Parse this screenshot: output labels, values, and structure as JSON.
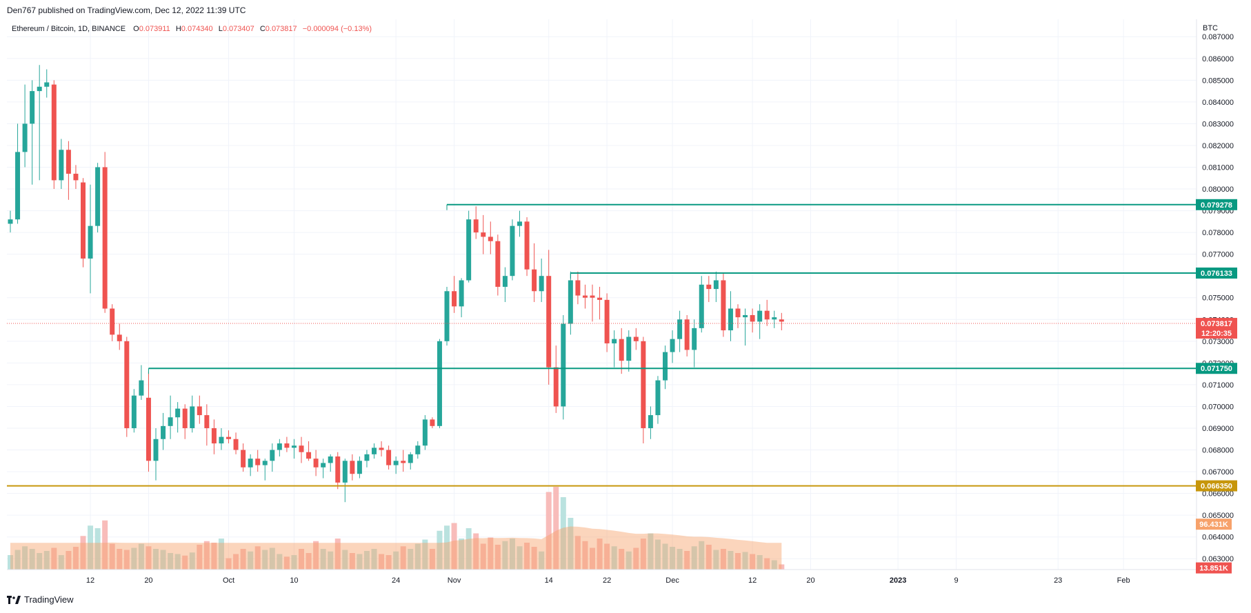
{
  "header": {
    "published": "Den767 published on TradingView.com, Dec 12, 2022 11:39 UTC"
  },
  "legend": {
    "symbol": "Ethereum / Bitcoin, 1D, BINANCE",
    "o_label": "O",
    "o_value": "0.073911",
    "h_label": "H",
    "h_value": "0.074340",
    "l_label": "L",
    "l_value": "0.073407",
    "c_label": "C",
    "c_value": "0.073817",
    "change": "−0.000094 (−0.13%)"
  },
  "footer": {
    "brand": "TradingView",
    "logo_icon": "tradingview-logo-icon"
  },
  "colors": {
    "up": "#26a69a",
    "down": "#ef5350",
    "level": "#089981",
    "support": "#c7960b",
    "vol_up": "#b2dfdb",
    "vol_down": "#f7b5b3",
    "vol_ma": "#f7a26b",
    "grid": "#f0f3fa"
  },
  "chart_data": {
    "type": "candlestick",
    "currency_label": "BTC",
    "price_axis_ticks": [
      "0.087000",
      "0.086000",
      "0.085000",
      "0.084000",
      "0.083000",
      "0.082000",
      "0.081000",
      "0.080000",
      "0.079000",
      "0.078000",
      "0.077000",
      "0.075000",
      "0.074000",
      "0.073000",
      "0.072000",
      "0.071000",
      "0.070000",
      "0.069000",
      "0.068000",
      "0.067000",
      "0.066000",
      "0.065000",
      "0.064000",
      "0.063000"
    ],
    "time_axis_ticks": [
      {
        "label": "12",
        "date": "2022-09-12"
      },
      {
        "label": "20",
        "date": "2022-09-20"
      },
      {
        "label": "Oct",
        "date": "2022-10-01"
      },
      {
        "label": "10",
        "date": "2022-10-10"
      },
      {
        "label": "24",
        "date": "2022-10-24"
      },
      {
        "label": "Nov",
        "date": "2022-11-01"
      },
      {
        "label": "14",
        "date": "2022-11-14"
      },
      {
        "label": "22",
        "date": "2022-11-22"
      },
      {
        "label": "Dec",
        "date": "2022-12-01"
      },
      {
        "label": "12",
        "date": "2022-12-12"
      },
      {
        "label": "20",
        "date": "2022-12-20"
      },
      {
        "label": "2023",
        "date": "2023-01-01"
      },
      {
        "label": "9",
        "date": "2023-01-09"
      },
      {
        "label": "23",
        "date": "2023-01-23"
      },
      {
        "label": "Feb",
        "date": "2023-02-01"
      }
    ],
    "price_range": [
      0.0625,
      0.0878
    ],
    "date_range": [
      "2022-09-01",
      "2023-02-11"
    ],
    "candles": [
      {
        "d": "2022-09-01",
        "o": 0.0784,
        "h": 0.079,
        "l": 0.078,
        "c": 0.0786,
        "v": 28
      },
      {
        "d": "2022-09-02",
        "o": 0.0786,
        "h": 0.083,
        "l": 0.0784,
        "c": 0.0817,
        "v": 38
      },
      {
        "d": "2022-09-03",
        "o": 0.0817,
        "h": 0.0848,
        "l": 0.081,
        "c": 0.083,
        "v": 45
      },
      {
        "d": "2022-09-04",
        "o": 0.083,
        "h": 0.085,
        "l": 0.0802,
        "c": 0.0845,
        "v": 40
      },
      {
        "d": "2022-09-05",
        "o": 0.0845,
        "h": 0.0857,
        "l": 0.0804,
        "c": 0.0847,
        "v": 32
      },
      {
        "d": "2022-09-06",
        "o": 0.0847,
        "h": 0.0855,
        "l": 0.0842,
        "c": 0.0849,
        "v": 36
      },
      {
        "d": "2022-09-07",
        "o": 0.0848,
        "h": 0.085,
        "l": 0.08,
        "c": 0.0804,
        "v": 42
      },
      {
        "d": "2022-09-08",
        "o": 0.0804,
        "h": 0.0823,
        "l": 0.08,
        "c": 0.0818,
        "v": 28
      },
      {
        "d": "2022-09-09",
        "o": 0.0818,
        "h": 0.0822,
        "l": 0.0795,
        "c": 0.0807,
        "v": 36
      },
      {
        "d": "2022-09-10",
        "o": 0.0807,
        "h": 0.0811,
        "l": 0.08,
        "c": 0.0804,
        "v": 44
      },
      {
        "d": "2022-09-11",
        "o": 0.0803,
        "h": 0.0805,
        "l": 0.0764,
        "c": 0.0768,
        "v": 65
      },
      {
        "d": "2022-09-12",
        "o": 0.0768,
        "h": 0.0802,
        "l": 0.0752,
        "c": 0.0783,
        "v": 85
      },
      {
        "d": "2022-09-13",
        "o": 0.0783,
        "h": 0.0812,
        "l": 0.078,
        "c": 0.081,
        "v": 80
      },
      {
        "d": "2022-09-14",
        "o": 0.081,
        "h": 0.0817,
        "l": 0.0743,
        "c": 0.0745,
        "v": 95
      },
      {
        "d": "2022-09-15",
        "o": 0.0745,
        "h": 0.0747,
        "l": 0.073,
        "c": 0.0733,
        "v": 50
      },
      {
        "d": "2022-09-16",
        "o": 0.0733,
        "h": 0.0738,
        "l": 0.0726,
        "c": 0.073,
        "v": 40
      },
      {
        "d": "2022-09-17",
        "o": 0.073,
        "h": 0.0732,
        "l": 0.0686,
        "c": 0.069,
        "v": 38
      },
      {
        "d": "2022-09-18",
        "o": 0.069,
        "h": 0.0708,
        "l": 0.0688,
        "c": 0.0705,
        "v": 42
      },
      {
        "d": "2022-09-19",
        "o": 0.0705,
        "h": 0.0719,
        "l": 0.0703,
        "c": 0.0712,
        "v": 50
      },
      {
        "d": "2022-09-20",
        "o": 0.0704,
        "h": 0.0716,
        "l": 0.067,
        "c": 0.0675,
        "v": 45
      },
      {
        "d": "2022-09-21",
        "o": 0.0675,
        "h": 0.069,
        "l": 0.0666,
        "c": 0.0685,
        "v": 40
      },
      {
        "d": "2022-09-22",
        "o": 0.0685,
        "h": 0.0697,
        "l": 0.068,
        "c": 0.0691,
        "v": 38
      },
      {
        "d": "2022-09-23",
        "o": 0.0691,
        "h": 0.0705,
        "l": 0.0685,
        "c": 0.0695,
        "v": 32
      },
      {
        "d": "2022-09-24",
        "o": 0.0695,
        "h": 0.0702,
        "l": 0.0688,
        "c": 0.0699,
        "v": 30
      },
      {
        "d": "2022-09-25",
        "o": 0.0699,
        "h": 0.0701,
        "l": 0.0685,
        "c": 0.069,
        "v": 27
      },
      {
        "d": "2022-09-26",
        "o": 0.069,
        "h": 0.0705,
        "l": 0.0688,
        "c": 0.07,
        "v": 33
      },
      {
        "d": "2022-09-27",
        "o": 0.07,
        "h": 0.0705,
        "l": 0.0692,
        "c": 0.0696,
        "v": 48
      },
      {
        "d": "2022-09-28",
        "o": 0.0696,
        "h": 0.0701,
        "l": 0.0682,
        "c": 0.069,
        "v": 55
      },
      {
        "d": "2022-09-29",
        "o": 0.069,
        "h": 0.0694,
        "l": 0.0678,
        "c": 0.0683,
        "v": 52
      },
      {
        "d": "2022-09-30",
        "o": 0.0683,
        "h": 0.069,
        "l": 0.068,
        "c": 0.0686,
        "v": 60
      },
      {
        "d": "2022-10-01",
        "o": 0.0686,
        "h": 0.0689,
        "l": 0.0683,
        "c": 0.0685,
        "v": 22
      },
      {
        "d": "2022-10-02",
        "o": 0.0685,
        "h": 0.0688,
        "l": 0.0678,
        "c": 0.068,
        "v": 30
      },
      {
        "d": "2022-10-03",
        "o": 0.068,
        "h": 0.0683,
        "l": 0.067,
        "c": 0.0672,
        "v": 40
      },
      {
        "d": "2022-10-04",
        "o": 0.0672,
        "h": 0.0678,
        "l": 0.0668,
        "c": 0.0676,
        "v": 35
      },
      {
        "d": "2022-10-05",
        "o": 0.0676,
        "h": 0.068,
        "l": 0.067,
        "c": 0.0673,
        "v": 45
      },
      {
        "d": "2022-10-06",
        "o": 0.0673,
        "h": 0.0676,
        "l": 0.0666,
        "c": 0.0675,
        "v": 38
      },
      {
        "d": "2022-10-07",
        "o": 0.0675,
        "h": 0.0683,
        "l": 0.067,
        "c": 0.068,
        "v": 42
      },
      {
        "d": "2022-10-08",
        "o": 0.068,
        "h": 0.0685,
        "l": 0.0677,
        "c": 0.0683,
        "v": 30
      },
      {
        "d": "2022-10-09",
        "o": 0.0683,
        "h": 0.0686,
        "l": 0.0679,
        "c": 0.0681,
        "v": 25
      },
      {
        "d": "2022-10-10",
        "o": 0.0681,
        "h": 0.0685,
        "l": 0.0676,
        "c": 0.0682,
        "v": 28
      },
      {
        "d": "2022-10-11",
        "o": 0.0682,
        "h": 0.0686,
        "l": 0.0674,
        "c": 0.0679,
        "v": 40
      },
      {
        "d": "2022-10-12",
        "o": 0.0679,
        "h": 0.0684,
        "l": 0.0675,
        "c": 0.0676,
        "v": 32
      },
      {
        "d": "2022-10-13",
        "o": 0.0676,
        "h": 0.068,
        "l": 0.0668,
        "c": 0.0672,
        "v": 55
      },
      {
        "d": "2022-10-14",
        "o": 0.0672,
        "h": 0.0676,
        "l": 0.0667,
        "c": 0.0674,
        "v": 40
      },
      {
        "d": "2022-10-15",
        "o": 0.0674,
        "h": 0.0678,
        "l": 0.067,
        "c": 0.0677,
        "v": 35
      },
      {
        "d": "2022-10-16",
        "o": 0.0677,
        "h": 0.0679,
        "l": 0.0662,
        "c": 0.0665,
        "v": 60
      },
      {
        "d": "2022-10-17",
        "o": 0.0665,
        "h": 0.0676,
        "l": 0.0656,
        "c": 0.0675,
        "v": 38
      },
      {
        "d": "2022-10-18",
        "o": 0.0675,
        "h": 0.0678,
        "l": 0.0666,
        "c": 0.0669,
        "v": 32
      },
      {
        "d": "2022-10-19",
        "o": 0.0669,
        "h": 0.0677,
        "l": 0.0667,
        "c": 0.0675,
        "v": 30
      },
      {
        "d": "2022-10-20",
        "o": 0.0675,
        "h": 0.068,
        "l": 0.0672,
        "c": 0.0678,
        "v": 36
      },
      {
        "d": "2022-10-21",
        "o": 0.0678,
        "h": 0.0683,
        "l": 0.0676,
        "c": 0.0681,
        "v": 40
      },
      {
        "d": "2022-10-22",
        "o": 0.0681,
        "h": 0.0684,
        "l": 0.0677,
        "c": 0.068,
        "v": 30
      },
      {
        "d": "2022-10-23",
        "o": 0.068,
        "h": 0.0682,
        "l": 0.0671,
        "c": 0.0673,
        "v": 28
      },
      {
        "d": "2022-10-24",
        "o": 0.0673,
        "h": 0.0677,
        "l": 0.0669,
        "c": 0.0675,
        "v": 35
      },
      {
        "d": "2022-10-25",
        "o": 0.0675,
        "h": 0.068,
        "l": 0.067,
        "c": 0.0674,
        "v": 45
      },
      {
        "d": "2022-10-26",
        "o": 0.0674,
        "h": 0.0679,
        "l": 0.0671,
        "c": 0.0678,
        "v": 40
      },
      {
        "d": "2022-10-27",
        "o": 0.0678,
        "h": 0.0684,
        "l": 0.0676,
        "c": 0.0682,
        "v": 50
      },
      {
        "d": "2022-10-28",
        "o": 0.0682,
        "h": 0.0696,
        "l": 0.068,
        "c": 0.0694,
        "v": 58
      },
      {
        "d": "2022-10-29",
        "o": 0.0694,
        "h": 0.0695,
        "l": 0.069,
        "c": 0.0691,
        "v": 40
      },
      {
        "d": "2022-10-30",
        "o": 0.0691,
        "h": 0.0731,
        "l": 0.069,
        "c": 0.073,
        "v": 75
      },
      {
        "d": "2022-10-31",
        "o": 0.073,
        "h": 0.0755,
        "l": 0.0728,
        "c": 0.0753,
        "v": 85
      },
      {
        "d": "2022-11-01",
        "o": 0.0753,
        "h": 0.076,
        "l": 0.0743,
        "c": 0.0746,
        "v": 90
      },
      {
        "d": "2022-11-02",
        "o": 0.0746,
        "h": 0.0759,
        "l": 0.0741,
        "c": 0.0758,
        "v": 60
      },
      {
        "d": "2022-11-03",
        "o": 0.0758,
        "h": 0.079,
        "l": 0.0757,
        "c": 0.0786,
        "v": 80
      },
      {
        "d": "2022-11-04",
        "o": 0.0786,
        "h": 0.0792,
        "l": 0.0777,
        "c": 0.078,
        "v": 70
      },
      {
        "d": "2022-11-05",
        "o": 0.078,
        "h": 0.0788,
        "l": 0.077,
        "c": 0.0778,
        "v": 50
      },
      {
        "d": "2022-11-06",
        "o": 0.0778,
        "h": 0.0785,
        "l": 0.077,
        "c": 0.0776,
        "v": 62
      },
      {
        "d": "2022-11-07",
        "o": 0.0776,
        "h": 0.0779,
        "l": 0.0751,
        "c": 0.0755,
        "v": 48
      },
      {
        "d": "2022-11-08",
        "o": 0.0755,
        "h": 0.0764,
        "l": 0.0748,
        "c": 0.076,
        "v": 55
      },
      {
        "d": "2022-11-09",
        "o": 0.076,
        "h": 0.0786,
        "l": 0.0758,
        "c": 0.0783,
        "v": 60
      },
      {
        "d": "2022-11-10",
        "o": 0.0783,
        "h": 0.079,
        "l": 0.0778,
        "c": 0.0785,
        "v": 45
      },
      {
        "d": "2022-11-11",
        "o": 0.0785,
        "h": 0.0787,
        "l": 0.076,
        "c": 0.0763,
        "v": 52
      },
      {
        "d": "2022-11-12",
        "o": 0.0763,
        "h": 0.0775,
        "l": 0.0748,
        "c": 0.0753,
        "v": 44
      },
      {
        "d": "2022-11-13",
        "o": 0.0753,
        "h": 0.0768,
        "l": 0.0748,
        "c": 0.076,
        "v": 35
      },
      {
        "d": "2022-11-14",
        "o": 0.076,
        "h": 0.0772,
        "l": 0.071,
        "c": 0.0718,
        "v": 150
      },
      {
        "d": "2022-11-15",
        "o": 0.0718,
        "h": 0.0728,
        "l": 0.0697,
        "c": 0.07,
        "v": 160
      },
      {
        "d": "2022-11-16",
        "o": 0.07,
        "h": 0.0742,
        "l": 0.0694,
        "c": 0.0738,
        "v": 140
      },
      {
        "d": "2022-11-17",
        "o": 0.0738,
        "h": 0.0762,
        "l": 0.0733,
        "c": 0.0758,
        "v": 100
      },
      {
        "d": "2022-11-18",
        "o": 0.0758,
        "h": 0.0762,
        "l": 0.0747,
        "c": 0.0751,
        "v": 65
      },
      {
        "d": "2022-11-19",
        "o": 0.0751,
        "h": 0.0756,
        "l": 0.0745,
        "c": 0.075,
        "v": 55
      },
      {
        "d": "2022-11-20",
        "o": 0.0751,
        "h": 0.0756,
        "l": 0.0739,
        "c": 0.075,
        "v": 42
      },
      {
        "d": "2022-11-21",
        "o": 0.075,
        "h": 0.0755,
        "l": 0.074,
        "c": 0.0749,
        "v": 60
      },
      {
        "d": "2022-11-22",
        "o": 0.0749,
        "h": 0.0752,
        "l": 0.0725,
        "c": 0.0729,
        "v": 50
      },
      {
        "d": "2022-11-23",
        "o": 0.0729,
        "h": 0.0735,
        "l": 0.0718,
        "c": 0.0731,
        "v": 45
      },
      {
        "d": "2022-11-24",
        "o": 0.0731,
        "h": 0.0736,
        "l": 0.0715,
        "c": 0.0721,
        "v": 40
      },
      {
        "d": "2022-11-25",
        "o": 0.0721,
        "h": 0.0735,
        "l": 0.0716,
        "c": 0.0732,
        "v": 35
      },
      {
        "d": "2022-11-26",
        "o": 0.0732,
        "h": 0.0736,
        "l": 0.0726,
        "c": 0.073,
        "v": 42
      },
      {
        "d": "2022-11-27",
        "o": 0.073,
        "h": 0.0732,
        "l": 0.0683,
        "c": 0.069,
        "v": 60
      },
      {
        "d": "2022-11-28",
        "o": 0.069,
        "h": 0.07,
        "l": 0.0685,
        "c": 0.0696,
        "v": 70
      },
      {
        "d": "2022-11-29",
        "o": 0.0696,
        "h": 0.0714,
        "l": 0.0692,
        "c": 0.0712,
        "v": 58
      },
      {
        "d": "2022-11-30",
        "o": 0.0712,
        "h": 0.0728,
        "l": 0.0708,
        "c": 0.0725,
        "v": 50
      },
      {
        "d": "2022-12-01",
        "o": 0.0725,
        "h": 0.0735,
        "l": 0.072,
        "c": 0.0731,
        "v": 44
      },
      {
        "d": "2022-12-02",
        "o": 0.0731,
        "h": 0.0744,
        "l": 0.0725,
        "c": 0.074,
        "v": 40
      },
      {
        "d": "2022-12-03",
        "o": 0.074,
        "h": 0.0742,
        "l": 0.0723,
        "c": 0.0726,
        "v": 36
      },
      {
        "d": "2022-12-04",
        "o": 0.0726,
        "h": 0.074,
        "l": 0.0718,
        "c": 0.0736,
        "v": 45
      },
      {
        "d": "2022-12-05",
        "o": 0.0736,
        "h": 0.076,
        "l": 0.0734,
        "c": 0.0756,
        "v": 55
      },
      {
        "d": "2022-12-06",
        "o": 0.0756,
        "h": 0.076,
        "l": 0.0748,
        "c": 0.0754,
        "v": 48
      },
      {
        "d": "2022-12-07",
        "o": 0.0754,
        "h": 0.0762,
        "l": 0.0748,
        "c": 0.0758,
        "v": 38
      },
      {
        "d": "2022-12-08",
        "o": 0.0758,
        "h": 0.0761,
        "l": 0.0732,
        "c": 0.0735,
        "v": 40
      },
      {
        "d": "2022-12-09",
        "o": 0.0735,
        "h": 0.0753,
        "l": 0.073,
        "c": 0.0745,
        "v": 36
      },
      {
        "d": "2022-12-10",
        "o": 0.0745,
        "h": 0.0747,
        "l": 0.0736,
        "c": 0.0741,
        "v": 32
      },
      {
        "d": "2022-12-11",
        "o": 0.0741,
        "h": 0.0745,
        "l": 0.0728,
        "c": 0.0742,
        "v": 34
      },
      {
        "d": "2022-12-12",
        "o": 0.0742,
        "h": 0.0745,
        "l": 0.0734,
        "c": 0.0739,
        "v": 30
      },
      {
        "d": "2022-12-13",
        "o": 0.0739,
        "h": 0.0747,
        "l": 0.0731,
        "c": 0.0744,
        "v": 28
      },
      {
        "d": "2022-12-14",
        "o": 0.0744,
        "h": 0.0749,
        "l": 0.0737,
        "c": 0.074,
        "v": 22
      },
      {
        "d": "2022-12-15",
        "o": 0.074,
        "h": 0.0744,
        "l": 0.0736,
        "c": 0.0741,
        "v": 18
      },
      {
        "d": "2022-12-16",
        "o": 0.074,
        "h": 0.0743,
        "l": 0.0735,
        "c": 0.0739,
        "v": 10
      }
    ],
    "levels": [
      {
        "price": 0.079278,
        "label": "0.079278",
        "start": "2022-10-31",
        "kind": "resistance"
      },
      {
        "price": 0.076133,
        "label": "0.076133",
        "start": "2022-11-17",
        "kind": "resistance"
      },
      {
        "price": 0.07175,
        "label": "0.071750",
        "start": "2022-09-20",
        "kind": "support"
      },
      {
        "price": 0.06635,
        "label": "0.066350",
        "start": "2022-09-01",
        "kind": "support-major"
      }
    ],
    "last_price": {
      "price": 0.073817,
      "label": "0.073817",
      "countdown": "12:20:35"
    },
    "volume_tags": [
      {
        "label": "96.431K",
        "kind": "ma"
      },
      {
        "label": "13.851K",
        "kind": "last"
      }
    ],
    "volume_ma_value": 96.431,
    "volume_last_value": 13.851
  }
}
